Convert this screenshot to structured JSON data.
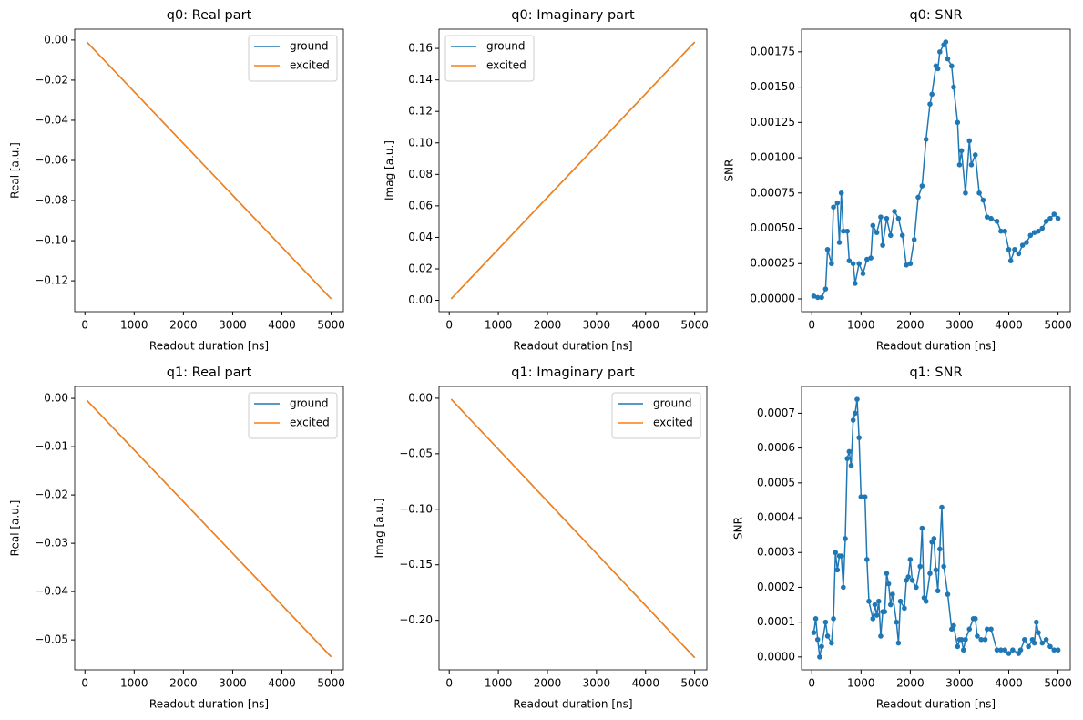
{
  "chart_data": [
    {
      "type": "line",
      "title": "q0: Real part",
      "xlabel": "Readout duration [ns]",
      "ylabel": "Real [a.u.]",
      "x": [
        40,
        5000
      ],
      "series": [
        {
          "name": "ground",
          "color": "#1f77b4",
          "values": [
            -0.001,
            -0.129
          ]
        },
        {
          "name": "excited",
          "color": "#ff7f0e",
          "values": [
            -0.001,
            -0.129
          ]
        }
      ],
      "xlim": [
        -208,
        5248
      ],
      "xticks": [
        0,
        1000,
        2000,
        3000,
        4000,
        5000
      ],
      "ylim": [
        -0.1354,
        0.0054
      ],
      "yticks": [
        {
          "value": 0,
          "label": "0.00"
        },
        {
          "value": -0.02,
          "label": "−0.02"
        },
        {
          "value": -0.04,
          "label": "−0.04"
        },
        {
          "value": -0.06,
          "label": "−0.06"
        },
        {
          "value": -0.08,
          "label": "−0.08"
        },
        {
          "value": -0.1,
          "label": "−0.10"
        },
        {
          "value": -0.12,
          "label": "−0.12"
        }
      ],
      "legend": "upper right"
    },
    {
      "type": "line",
      "title": "q0: Imaginary part",
      "xlabel": "Readout duration [ns]",
      "ylabel": "Imag [a.u.]",
      "x": [
        40,
        5000
      ],
      "series": [
        {
          "name": "ground",
          "color": "#1f77b4",
          "values": [
            0.001,
            0.164
          ]
        },
        {
          "name": "excited",
          "color": "#ff7f0e",
          "values": [
            0.001,
            0.164
          ]
        }
      ],
      "xlim": [
        -208,
        5248
      ],
      "xticks": [
        0,
        1000,
        2000,
        3000,
        4000,
        5000
      ],
      "ylim": [
        -0.0072,
        0.1722
      ],
      "yticks": [
        {
          "value": 0,
          "label": "0.00"
        },
        {
          "value": 0.02,
          "label": "0.02"
        },
        {
          "value": 0.04,
          "label": "0.04"
        },
        {
          "value": 0.06,
          "label": "0.06"
        },
        {
          "value": 0.08,
          "label": "0.08"
        },
        {
          "value": 0.1,
          "label": "0.10"
        },
        {
          "value": 0.12,
          "label": "0.12"
        },
        {
          "value": 0.14,
          "label": "0.14"
        },
        {
          "value": 0.16,
          "label": "0.16"
        }
      ],
      "legend": "upper left"
    },
    {
      "type": "line",
      "title": "q0: SNR",
      "xlabel": "Readout duration [ns]",
      "ylabel": "SNR",
      "markers": true,
      "x": [
        40,
        120,
        200,
        280,
        320,
        400,
        440,
        520,
        560,
        600,
        640,
        720,
        760,
        840,
        880,
        960,
        1040,
        1120,
        1200,
        1240,
        1320,
        1400,
        1440,
        1520,
        1600,
        1680,
        1760,
        1840,
        1920,
        2000,
        2080,
        2160,
        2240,
        2320,
        2400,
        2440,
        2520,
        2560,
        2600,
        2680,
        2720,
        2760,
        2840,
        2880,
        2960,
        3000,
        3040,
        3120,
        3200,
        3240,
        3320,
        3400,
        3480,
        3560,
        3640,
        3760,
        3840,
        3920,
        4000,
        4040,
        4120,
        4200,
        4280,
        4360,
        4440,
        4520,
        4600,
        4680,
        4760,
        4840,
        4920,
        5000
      ],
      "series": [
        {
          "color": "#1f77b4",
          "values": [
            2e-05,
            1e-05,
            1e-05,
            7e-05,
            0.00035,
            0.00025,
            0.00065,
            0.00068,
            0.0004,
            0.00075,
            0.00048,
            0.00048,
            0.00027,
            0.00025,
            0.00011,
            0.00025,
            0.00018,
            0.00028,
            0.00029,
            0.00052,
            0.00047,
            0.00058,
            0.00038,
            0.00057,
            0.00045,
            0.00062,
            0.00057,
            0.00045,
            0.00024,
            0.00025,
            0.00042,
            0.00072,
            0.0008,
            0.00113,
            0.00138,
            0.00145,
            0.00165,
            0.00163,
            0.00175,
            0.0018,
            0.00182,
            0.0017,
            0.00165,
            0.0015,
            0.00125,
            0.00095,
            0.00105,
            0.00075,
            0.00112,
            0.00095,
            0.00102,
            0.00075,
            0.0007,
            0.00058,
            0.00057,
            0.00055,
            0.00048,
            0.00048,
            0.00035,
            0.00027,
            0.00035,
            0.00032,
            0.00038,
            0.0004,
            0.00045,
            0.00047,
            0.00048,
            0.0005,
            0.00055,
            0.00057,
            0.0006,
            0.00057
          ]
        }
      ],
      "xlim": [
        -208,
        5248
      ],
      "xticks": [
        0,
        1000,
        2000,
        3000,
        4000,
        5000
      ],
      "ylim": [
        -9.05e-05,
        0.0019105
      ],
      "yticks": [
        {
          "value": 0,
          "label": "0.00000"
        },
        {
          "value": 0.00025,
          "label": "0.00025"
        },
        {
          "value": 0.0005,
          "label": "0.00050"
        },
        {
          "value": 0.00075,
          "label": "0.00075"
        },
        {
          "value": 0.001,
          "label": "0.00100"
        },
        {
          "value": 0.00125,
          "label": "0.00125"
        },
        {
          "value": 0.0015,
          "label": "0.00150"
        },
        {
          "value": 0.00175,
          "label": "0.00175"
        }
      ]
    },
    {
      "type": "line",
      "title": "q1: Real part",
      "xlabel": "Readout duration [ns]",
      "ylabel": "Real [a.u.]",
      "x": [
        40,
        5000
      ],
      "series": [
        {
          "name": "ground",
          "color": "#1f77b4",
          "values": [
            -0.0004,
            -0.0535
          ]
        },
        {
          "name": "excited",
          "color": "#ff7f0e",
          "values": [
            -0.0004,
            -0.0535
          ]
        }
      ],
      "xlim": [
        -208,
        5248
      ],
      "xticks": [
        0,
        1000,
        2000,
        3000,
        4000,
        5000
      ],
      "ylim": [
        -0.0562,
        0.00247
      ],
      "yticks": [
        {
          "value": 0,
          "label": "0.00"
        },
        {
          "value": -0.01,
          "label": "−0.01"
        },
        {
          "value": -0.02,
          "label": "−0.02"
        },
        {
          "value": -0.03,
          "label": "−0.03"
        },
        {
          "value": -0.04,
          "label": "−0.04"
        },
        {
          "value": -0.05,
          "label": "−0.05"
        }
      ],
      "legend": "upper right"
    },
    {
      "type": "line",
      "title": "q1: Imaginary part",
      "xlabel": "Readout duration [ns]",
      "ylabel": "Imag [a.u.]",
      "x": [
        40,
        5000
      ],
      "series": [
        {
          "name": "ground",
          "color": "#1f77b4",
          "values": [
            -0.0009,
            -0.2336
          ]
        },
        {
          "name": "excited",
          "color": "#ff7f0e",
          "values": [
            -0.0009,
            -0.2336
          ]
        }
      ],
      "xlim": [
        -208,
        5248
      ],
      "xticks": [
        0,
        1000,
        2000,
        3000,
        4000,
        5000
      ],
      "ylim": [
        -0.2446,
        0.0106
      ],
      "yticks": [
        {
          "value": 0,
          "label": "0.00"
        },
        {
          "value": -0.05,
          "label": "−0.05"
        },
        {
          "value": -0.1,
          "label": "−0.10"
        },
        {
          "value": -0.15,
          "label": "−0.15"
        },
        {
          "value": -0.2,
          "label": "−0.20"
        }
      ],
      "legend": "upper right"
    },
    {
      "type": "line",
      "title": "q1: SNR",
      "xlabel": "Readout duration [ns]",
      "ylabel": "SNR",
      "markers": true,
      "x": [
        40,
        80,
        120,
        160,
        200,
        280,
        320,
        400,
        440,
        480,
        520,
        560,
        600,
        640,
        680,
        720,
        760,
        800,
        840,
        880,
        920,
        960,
        1000,
        1080,
        1120,
        1160,
        1240,
        1280,
        1320,
        1360,
        1400,
        1440,
        1480,
        1520,
        1560,
        1600,
        1640,
        1720,
        1760,
        1800,
        1880,
        1920,
        1960,
        2000,
        2040,
        2120,
        2200,
        2240,
        2280,
        2320,
        2400,
        2440,
        2480,
        2520,
        2560,
        2600,
        2640,
        2680,
        2760,
        2840,
        2880,
        2960,
        3000,
        3040,
        3080,
        3120,
        3200,
        3280,
        3320,
        3360,
        3440,
        3520,
        3560,
        3640,
        3760,
        3840,
        3920,
        4000,
        4080,
        4200,
        4240,
        4320,
        4400,
        4480,
        4520,
        4560,
        4600,
        4680,
        4760,
        4840,
        4920,
        5000
      ],
      "series": [
        {
          "color": "#1f77b4",
          "values": [
            7e-05,
            0.00011,
            5e-05,
            0,
            3e-05,
            0.0001,
            6e-05,
            4e-05,
            0.00011,
            0.0003,
            0.00025,
            0.00029,
            0.00029,
            0.0002,
            0.00034,
            0.00057,
            0.00059,
            0.00055,
            0.00068,
            0.0007,
            0.00074,
            0.00063,
            0.00046,
            0.00046,
            0.00028,
            0.00016,
            0.00011,
            0.00015,
            0.00012,
            0.00016,
            6e-05,
            0.00013,
            0.00013,
            0.00024,
            0.00021,
            0.00015,
            0.00018,
            0.0001,
            4e-05,
            0.00016,
            0.00014,
            0.00022,
            0.00023,
            0.00028,
            0.00022,
            0.0002,
            0.00026,
            0.00037,
            0.00017,
            0.00016,
            0.00024,
            0.00033,
            0.00034,
            0.00025,
            0.00019,
            0.00031,
            0.00043,
            0.00026,
            0.00018,
            8e-05,
            9e-05,
            3e-05,
            5e-05,
            5e-05,
            2e-05,
            5e-05,
            8e-05,
            0.00011,
            0.00011,
            6e-05,
            5e-05,
            5e-05,
            8e-05,
            8e-05,
            2e-05,
            2e-05,
            2e-05,
            1e-05,
            2e-05,
            1e-05,
            2e-05,
            5e-05,
            3e-05,
            5e-05,
            4e-05,
            0.0001,
            7e-05,
            4e-05,
            5e-05,
            3e-05,
            2e-05,
            2e-05
          ]
        }
      ],
      "xlim": [
        -208,
        5248
      ],
      "xticks": [
        0,
        1000,
        2000,
        3000,
        4000,
        5000
      ],
      "ylim": [
        -3.7e-05,
        0.000777
      ],
      "yticks": [
        {
          "value": 0,
          "label": "0.0000"
        },
        {
          "value": 0.0001,
          "label": "0.0001"
        },
        {
          "value": 0.0002,
          "label": "0.0002"
        },
        {
          "value": 0.0003,
          "label": "0.0003"
        },
        {
          "value": 0.0004,
          "label": "0.0004"
        },
        {
          "value": 0.0005,
          "label": "0.0005"
        },
        {
          "value": 0.0006,
          "label": "0.0006"
        },
        {
          "value": 0.0007,
          "label": "0.0007"
        }
      ]
    }
  ]
}
